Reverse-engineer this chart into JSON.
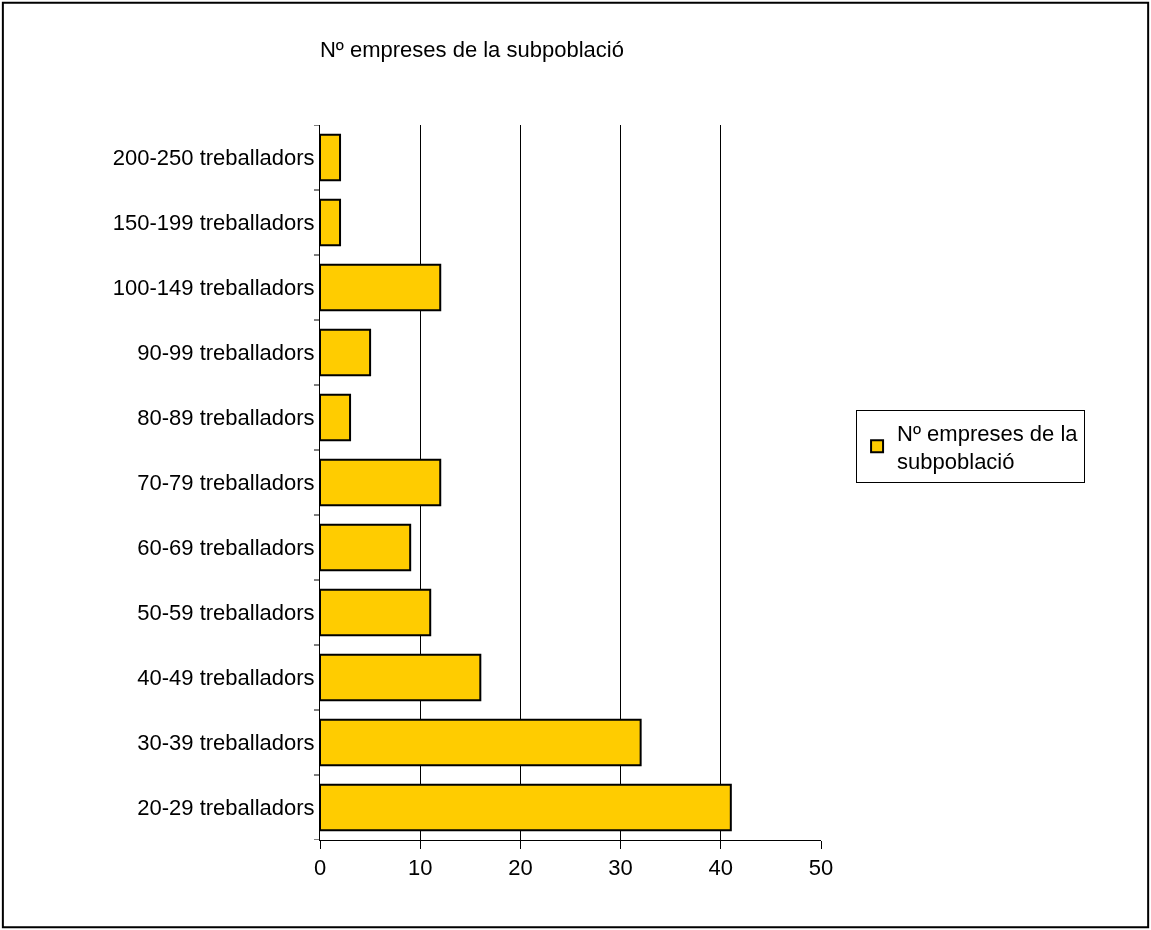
{
  "chart_data": {
    "type": "bar",
    "orientation": "horizontal",
    "title": "Nº empreses de la subpoblació",
    "categories": [
      "200-250 treballadors",
      "150-199 treballadors",
      "100-149 treballadors",
      "90-99 treballadors",
      "80-89 treballadors",
      "70-79 treballadors",
      "60-69 treballadors",
      "50-59 treballadors",
      "40-49 treballadors",
      "30-39 treballadors",
      "20-29 treballadors"
    ],
    "series": [
      {
        "name": "Nº empreses de la subpoblació",
        "color": "#ffcc00",
        "values": [
          2,
          2,
          12,
          5,
          3,
          12,
          9,
          11,
          16,
          32,
          41
        ]
      }
    ],
    "xlim": [
      0,
      50
    ],
    "xticks": [
      0,
      10,
      20,
      30,
      40,
      50
    ],
    "grid": "x",
    "legend": "right"
  }
}
